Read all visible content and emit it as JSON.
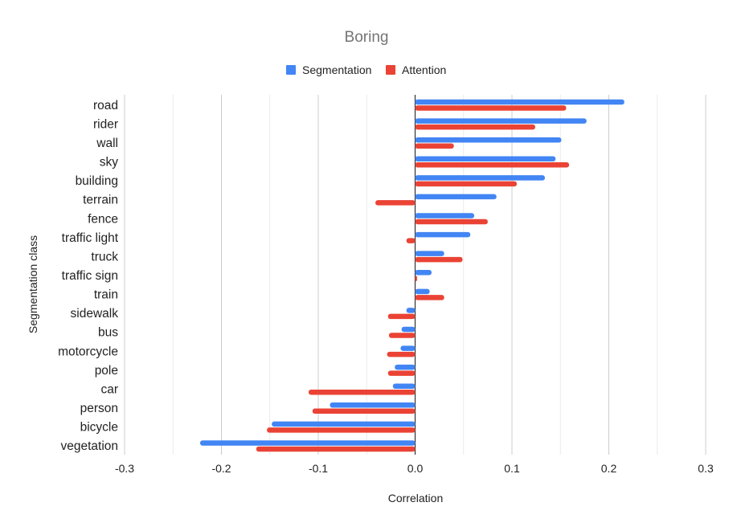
{
  "chart_data": {
    "type": "bar",
    "orientation": "horizontal",
    "title": "Boring",
    "xlabel": "Correlation",
    "ylabel": "Segmentation class",
    "xlim": [
      -0.3,
      0.3
    ],
    "x_ticks": [
      "-0.3",
      "-0.2",
      "-0.1",
      "0.0",
      "0.1",
      "0.2",
      "0.3"
    ],
    "grid": true,
    "legend_position": "top",
    "categories": [
      "road",
      "rider",
      "wall",
      "sky",
      "building",
      "terrain",
      "fence",
      "traffic light",
      "truck",
      "traffic sign",
      "train",
      "sidewalk",
      "bus",
      "motorcycle",
      "pole",
      "car",
      "person",
      "bicycle",
      "vegetation"
    ],
    "series": [
      {
        "name": "Segmentation",
        "color": "#4285f4",
        "values": [
          0.216,
          0.177,
          0.151,
          0.145,
          0.134,
          0.084,
          0.061,
          0.057,
          0.03,
          0.017,
          0.015,
          -0.009,
          -0.014,
          -0.015,
          -0.021,
          -0.023,
          -0.088,
          -0.148,
          -0.222
        ]
      },
      {
        "name": "Attention",
        "color": "#ea4335",
        "values": [
          0.156,
          0.124,
          0.04,
          0.159,
          0.105,
          -0.041,
          0.075,
          -0.009,
          0.049,
          0.002,
          0.03,
          -0.028,
          -0.027,
          -0.029,
          -0.028,
          -0.11,
          -0.106,
          -0.153,
          -0.164
        ]
      }
    ]
  }
}
